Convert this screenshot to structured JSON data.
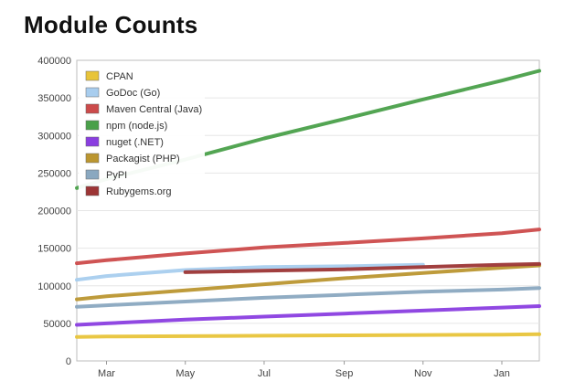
{
  "title": "Module Counts",
  "chart_data": {
    "type": "line",
    "title": "Module Counts",
    "xlabel": "",
    "ylabel": "",
    "x_axis": {
      "ticks": [
        "Mar",
        "May",
        "Jul",
        "Sep",
        "Nov",
        "Jan"
      ],
      "range": [
        "Feb 6",
        "Jan 30"
      ]
    },
    "ylim": [
      0,
      400000
    ],
    "y_ticks": [
      0,
      50000,
      100000,
      150000,
      200000,
      250000,
      300000,
      350000,
      400000
    ],
    "grid": true,
    "legend_position": "top-left",
    "x": [
      "Feb 6",
      "Mar 1",
      "May 1",
      "Jul 1",
      "Sep 1",
      "Nov 1",
      "Jan 1",
      "Jan 30"
    ],
    "series": [
      {
        "name": "CPAN",
        "color": "#e8c43a",
        "values": [
          32000,
          32500,
          33000,
          33500,
          34000,
          34500,
          35000,
          35500
        ]
      },
      {
        "name": "GoDoc (Go)",
        "color": "#a8cdee",
        "values": [
          108000,
          113000,
          121000,
          125000,
          126000,
          128000,
          null,
          null
        ]
      },
      {
        "name": "Maven Central (Java)",
        "color": "#cc4b4b",
        "values": [
          130000,
          134000,
          143000,
          151000,
          157000,
          163000,
          170000,
          175000
        ]
      },
      {
        "name": "npm (node.js)",
        "color": "#4aa04a",
        "values": [
          230000,
          242000,
          268000,
          296000,
          322000,
          348000,
          373000,
          386000
        ]
      },
      {
        "name": "nuget (.NET)",
        "color": "#8a3ee0",
        "values": [
          48000,
          50000,
          55000,
          59000,
          63000,
          67000,
          71000,
          73000
        ]
      },
      {
        "name": "Packagist (PHP)",
        "color": "#bb9630",
        "values": [
          82000,
          86000,
          94000,
          102000,
          110000,
          117000,
          124000,
          127000
        ]
      },
      {
        "name": "PyPI",
        "color": "#8aa8c0",
        "values": [
          72000,
          74000,
          79000,
          84000,
          88000,
          92000,
          95000,
          97000
        ]
      },
      {
        "name": "Rubygems.org",
        "color": "#9c3535",
        "values": [
          null,
          null,
          118000,
          120000,
          122000,
          125000,
          128000,
          129000
        ]
      }
    ]
  }
}
